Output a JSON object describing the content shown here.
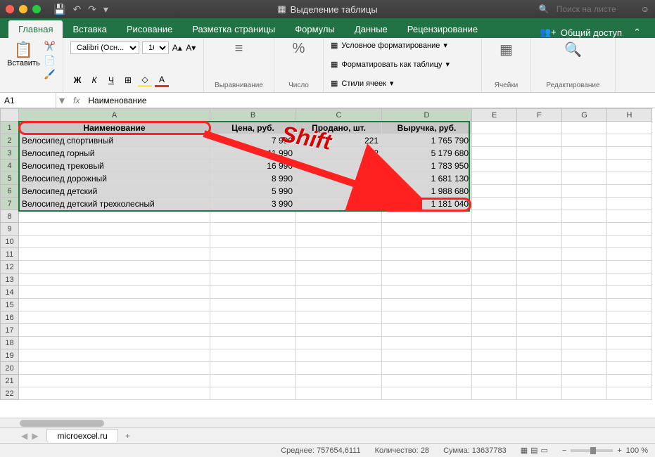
{
  "titlebar": {
    "doc_title": "Выделение таблицы",
    "search_placeholder": "Поиск на листе"
  },
  "ribbon_tabs": [
    "Главная",
    "Вставка",
    "Рисование",
    "Разметка страницы",
    "Формулы",
    "Данные",
    "Рецензирование"
  ],
  "share_label": "Общий доступ",
  "ribbon": {
    "paste_label": "Вставить",
    "font_name": "Calibri (Осн...",
    "font_size": "16",
    "align_label": "Выравнивание",
    "number_label": "Число",
    "cond_format": "Условное форматирование",
    "format_table": "Форматировать как таблицу",
    "cell_styles": "Стили ячеек",
    "cells_label": "Ячейки",
    "editing_label": "Редактирование"
  },
  "name_box": "A1",
  "formula": "Наименование",
  "columns": [
    "A",
    "B",
    "C",
    "D",
    "E",
    "F",
    "G",
    "H"
  ],
  "selected_cols": 4,
  "row_count": 22,
  "data": {
    "headers": [
      "Наименование",
      "Цена, руб.",
      "Продано, шт.",
      "Выручка, руб."
    ],
    "rows": [
      [
        "Велосипед спортивный",
        "7 990",
        "221",
        "1 765 790"
      ],
      [
        "Велосипед горный",
        "11 990",
        "432",
        "5 179 680"
      ],
      [
        "Велосипед трековый",
        "16 990",
        "105",
        "1 783 950"
      ],
      [
        "Велосипед дорожный",
        "8 990",
        "187",
        "1 681 130"
      ],
      [
        "Велосипед детский",
        "5 990",
        "332",
        "1 988 680"
      ],
      [
        "Велосипед детский трехколесный",
        "3 990",
        "296",
        "1 181 040"
      ]
    ]
  },
  "shift_label": "Shift",
  "sheet_tab": "microexcel.ru",
  "status": {
    "avg_label": "Среднее:",
    "avg": "757654,6111",
    "count_label": "Количество:",
    "count": "28",
    "sum_label": "Сумма:",
    "sum": "13637783",
    "zoom": "100 %"
  },
  "colors": {
    "ribbon_green": "#217346",
    "selection_green": "#1a7a3d",
    "highlight_red": "#ff2020",
    "sel_fill": "#d8d8d8"
  }
}
